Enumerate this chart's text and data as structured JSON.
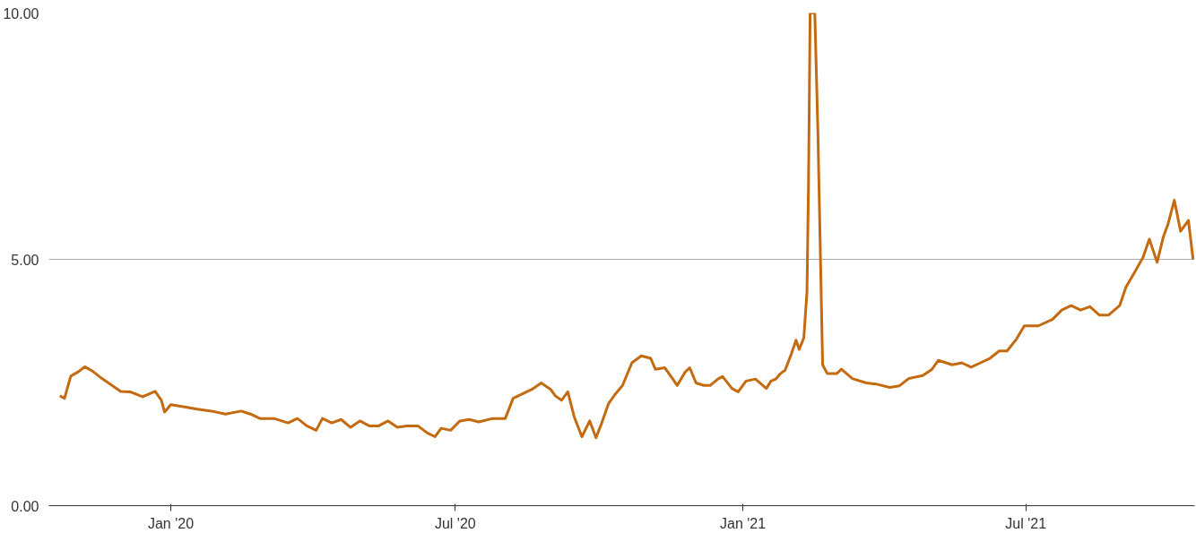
{
  "chart_data": {
    "type": "line",
    "x": [
      "2019-10-22",
      "2019-10-25",
      "2019-10-29",
      "2019-11-03",
      "2019-11-07",
      "2019-11-12",
      "2019-11-18",
      "2019-11-24",
      "2019-11-30",
      "2019-12-06",
      "2019-12-14",
      "2019-12-22",
      "2019-12-26",
      "2019-12-28",
      "2020-01-01",
      "2020-01-09",
      "2020-01-18",
      "2020-01-27",
      "2020-02-05",
      "2020-02-15",
      "2020-02-21",
      "2020-02-27",
      "2020-03-07",
      "2020-03-16",
      "2020-03-22",
      "2020-03-28",
      "2020-04-03",
      "2020-04-07",
      "2020-04-13",
      "2020-04-19",
      "2020-04-25",
      "2020-05-01",
      "2020-05-07",
      "2020-05-13",
      "2020-05-19",
      "2020-05-25",
      "2020-05-31",
      "2020-06-07",
      "2020-06-13",
      "2020-06-18",
      "2020-06-22",
      "2020-06-28",
      "2020-07-04",
      "2020-07-10",
      "2020-07-16",
      "2020-07-25",
      "2020-08-02",
      "2020-08-07",
      "2020-08-13",
      "2020-08-19",
      "2020-08-25",
      "2020-08-31",
      "2020-09-03",
      "2020-09-07",
      "2020-09-11",
      "2020-09-15",
      "2020-09-20",
      "2020-09-25",
      "2020-09-29",
      "2020-10-02",
      "2020-10-07",
      "2020-10-11",
      "2020-10-16",
      "2020-10-22",
      "2020-10-28",
      "2020-11-03",
      "2020-11-06",
      "2020-11-12",
      "2020-11-17",
      "2020-11-20",
      "2020-11-25",
      "2020-11-28",
      "2020-12-02",
      "2020-12-07",
      "2020-12-11",
      "2020-12-16",
      "2020-12-19",
      "2020-12-25",
      "2020-12-29",
      "2021-01-03",
      "2021-01-09",
      "2021-01-16",
      "2021-01-19",
      "2021-01-22",
      "2021-01-25",
      "2021-01-28",
      "2021-02-01",
      "2021-02-04",
      "2021-02-06",
      "2021-02-09",
      "2021-02-11",
      "2021-02-12",
      "2021-02-13",
      "2021-02-16",
      "2021-02-18",
      "2021-02-21",
      "2021-02-24",
      "2021-03-02",
      "2021-03-05",
      "2021-03-12",
      "2021-03-21",
      "2021-03-27",
      "2021-04-05",
      "2021-04-11",
      "2021-04-17",
      "2021-04-26",
      "2021-05-02",
      "2021-05-06",
      "2021-05-15",
      "2021-05-21",
      "2021-05-27",
      "2021-06-02",
      "2021-06-08",
      "2021-06-14",
      "2021-06-19",
      "2021-06-25",
      "2021-06-30",
      "2021-07-09",
      "2021-07-18",
      "2021-07-24",
      "2021-07-30",
      "2021-08-05",
      "2021-08-11",
      "2021-08-17",
      "2021-08-23",
      "2021-08-30",
      "2021-09-03",
      "2021-09-09",
      "2021-09-14",
      "2021-09-18",
      "2021-09-23",
      "2021-09-27",
      "2021-09-30",
      "2021-10-04",
      "2021-10-08",
      "2021-10-13",
      "2021-10-16"
    ],
    "series": [
      {
        "color": "#c46a10",
        "values": [
          2.23,
          2.18,
          2.63,
          2.72,
          2.82,
          2.73,
          2.58,
          2.45,
          2.32,
          2.31,
          2.21,
          2.32,
          2.14,
          1.9,
          2.05,
          2.01,
          1.96,
          1.92,
          1.86,
          1.92,
          1.86,
          1.77,
          1.77,
          1.68,
          1.77,
          1.62,
          1.53,
          1.77,
          1.68,
          1.75,
          1.59,
          1.72,
          1.62,
          1.62,
          1.72,
          1.59,
          1.62,
          1.62,
          1.48,
          1.4,
          1.57,
          1.53,
          1.72,
          1.75,
          1.7,
          1.77,
          1.77,
          2.18,
          2.27,
          2.36,
          2.49,
          2.36,
          2.23,
          2.14,
          2.31,
          1.81,
          1.4,
          1.72,
          1.38,
          1.62,
          2.07,
          2.25,
          2.44,
          2.9,
          3.04,
          2.99,
          2.77,
          2.8,
          2.58,
          2.44,
          2.71,
          2.8,
          2.49,
          2.44,
          2.44,
          2.57,
          2.62,
          2.38,
          2.31,
          2.53,
          2.57,
          2.38,
          2.53,
          2.57,
          2.68,
          2.75,
          3.08,
          3.36,
          3.17,
          3.41,
          4.35,
          6.64,
          10,
          10,
          7.56,
          2.86,
          2.68,
          2.68,
          2.77,
          2.58,
          2.49,
          2.47,
          2.4,
          2.43,
          2.58,
          2.64,
          2.77,
          2.95,
          2.86,
          2.9,
          2.81,
          2.9,
          2.99,
          3.14,
          3.14,
          3.38,
          3.65,
          3.65,
          3.78,
          3.97,
          4.06,
          3.97,
          4.04,
          3.87,
          3.87,
          4.06,
          4.43,
          4.76,
          5.04,
          5.41,
          4.94,
          5.46,
          5.72,
          6.2,
          5.57,
          5.79,
          5.0
        ]
      }
    ],
    "xlim": [
      "2019-10-15",
      "2021-10-17"
    ],
    "xticks": [
      {
        "value": "2020-01-01",
        "label": "Jan '20"
      },
      {
        "value": "2020-07-01",
        "label": "Jul '20"
      },
      {
        "value": "2021-01-01",
        "label": "Jan '21"
      },
      {
        "value": "2021-07-01",
        "label": "Jul '21"
      }
    ],
    "ylim": [
      0,
      10
    ],
    "yticks": [
      {
        "value": 0,
        "label": "0.00"
      },
      {
        "value": 5,
        "label": "5.00"
      },
      {
        "value": 10,
        "label": "10.00"
      }
    ],
    "grid": "y",
    "line_style": "solid"
  }
}
